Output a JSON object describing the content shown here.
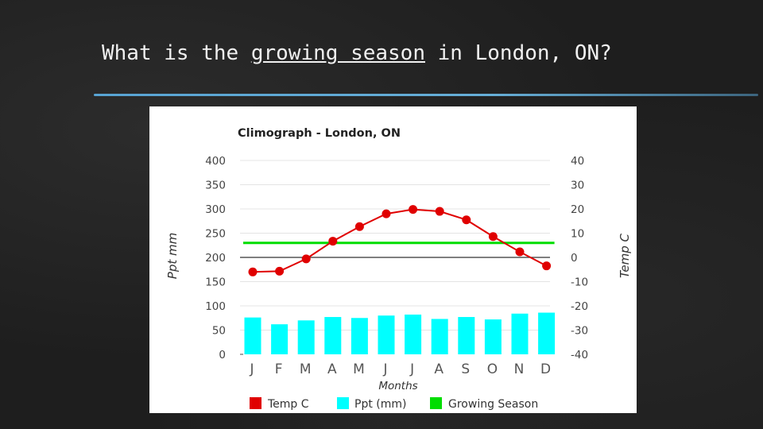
{
  "slide": {
    "title_before": "What is the ",
    "title_underlined": "growing season",
    "title_after": " in London, ON?"
  },
  "chart_data": {
    "type": "bar",
    "title": "Climograph - London, ON",
    "xlabel": "Months",
    "categories": [
      "J",
      "F",
      "M",
      "A",
      "M",
      "J",
      "J",
      "A",
      "S",
      "O",
      "N",
      "D"
    ],
    "left_axis": {
      "label": "Ppt mm",
      "range": [
        0,
        400
      ],
      "ticks": [
        "400",
        "350",
        "300",
        "250",
        "200",
        "150",
        "100",
        "50",
        "0"
      ]
    },
    "right_axis": {
      "label": "Temp C",
      "range": [
        -40,
        40
      ],
      "ticks": [
        "40",
        "30",
        "20",
        "10",
        "0",
        "-10",
        "-20",
        "-30",
        "-40"
      ]
    },
    "series": [
      {
        "name": "Ppt (mm)",
        "kind": "bar",
        "axis": "left",
        "color": "#00ffff",
        "values": [
          76,
          62,
          70,
          77,
          75,
          80,
          82,
          73,
          77,
          72,
          84,
          86
        ]
      },
      {
        "name": "Temp C",
        "kind": "line",
        "axis": "right",
        "color": "#e00000",
        "values": [
          -6,
          -5.7,
          -0.6,
          6.7,
          12.7,
          18,
          19.8,
          19,
          15.5,
          8.6,
          2.3,
          -3.5
        ]
      },
      {
        "name": "Growing Season",
        "kind": "line",
        "axis": "right",
        "color": "#00dd00",
        "values": [
          6,
          6,
          6,
          6,
          6,
          6,
          6,
          6,
          6,
          6,
          6,
          6
        ]
      }
    ],
    "legend": {
      "placement": "bottom",
      "items": [
        "Temp C",
        "Ppt (mm)",
        "Growing Season"
      ]
    },
    "grid": true
  }
}
